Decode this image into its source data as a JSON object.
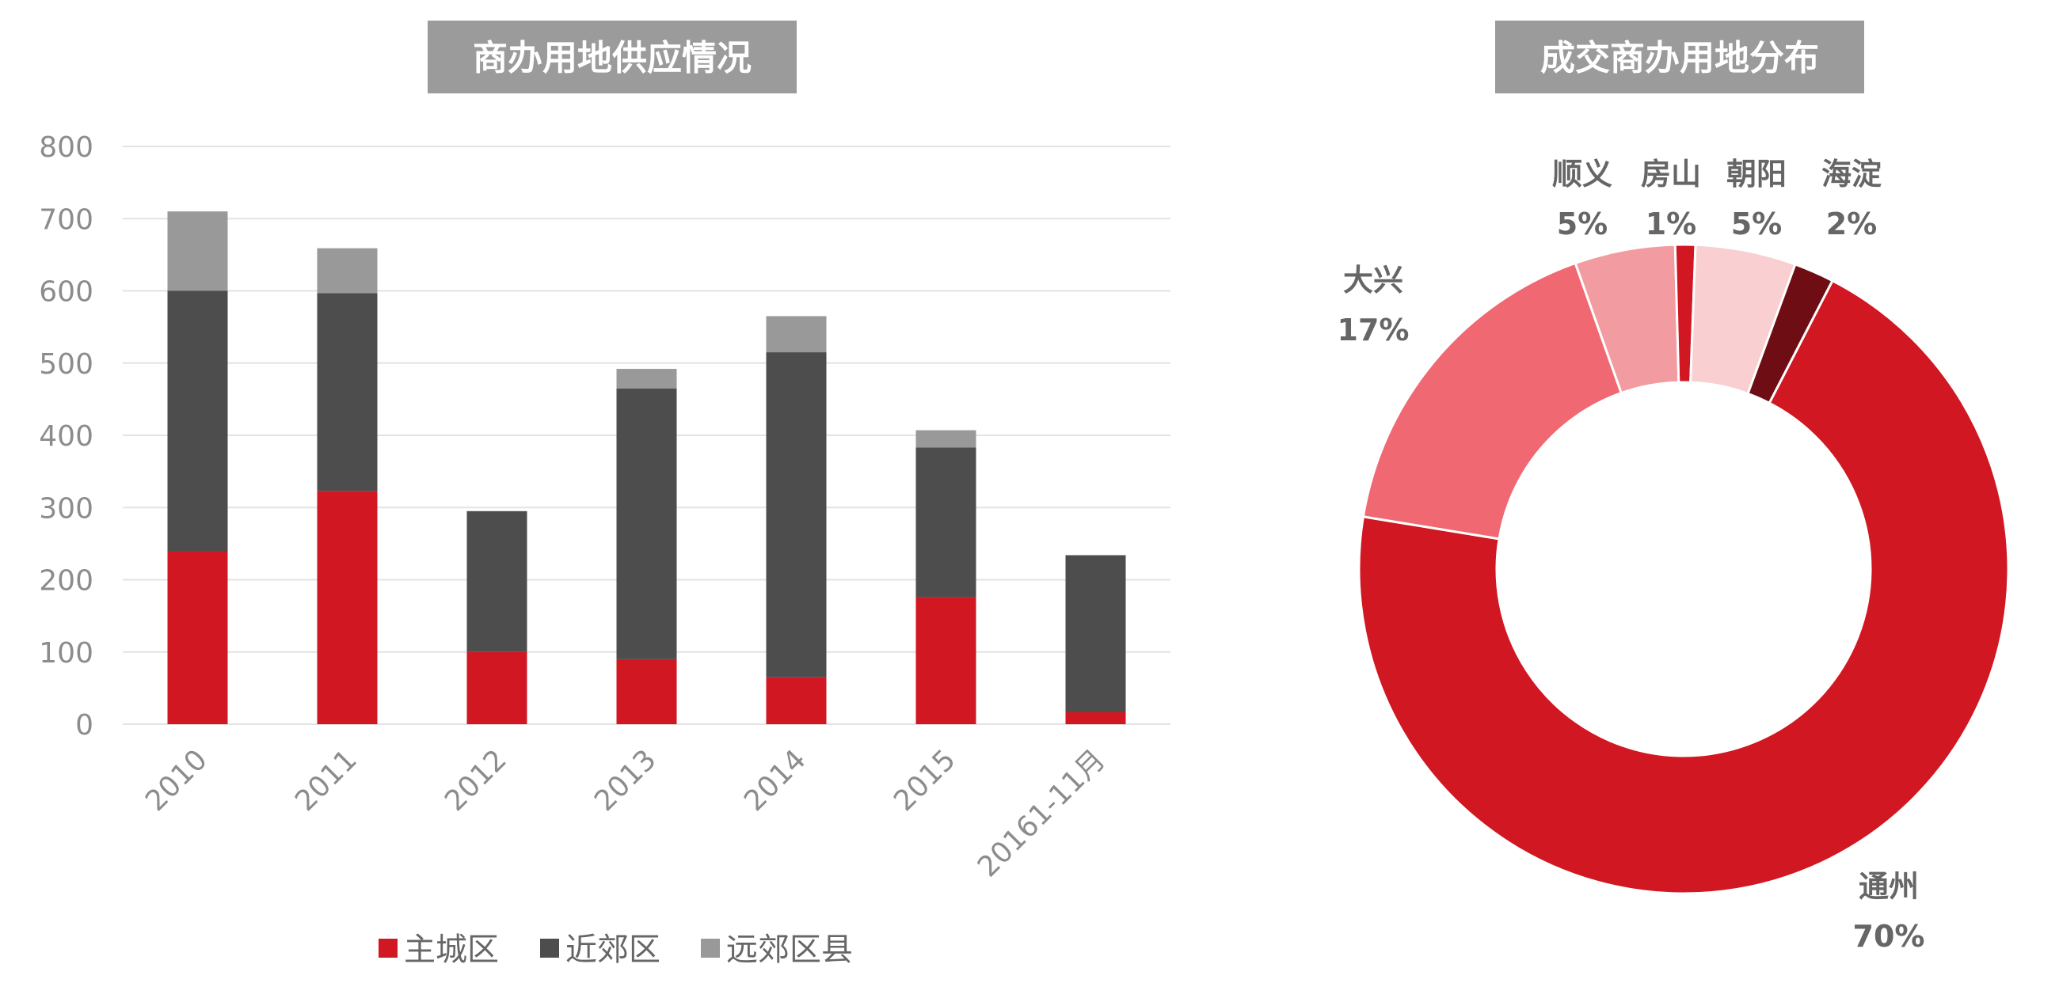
{
  "chart_data": [
    {
      "type": "bar",
      "stacked": true,
      "title": "商办用地供应情况",
      "categories": [
        "2010",
        "2011",
        "2012",
        "2013",
        "2014",
        "2015",
        "20161-11月"
      ],
      "series": [
        {
          "name": "主城区",
          "color": "#d01722",
          "values": [
            240,
            323,
            100,
            90,
            65,
            176,
            17
          ]
        },
        {
          "name": "近郊区",
          "color": "#4d4d4d",
          "values": [
            360,
            274,
            195,
            375,
            450,
            207,
            217
          ]
        },
        {
          "name": "远郊区县",
          "color": "#999999",
          "values": [
            110,
            62,
            0,
            27,
            50,
            24,
            0
          ]
        }
      ],
      "y_ticks": [
        "0",
        "100",
        "200",
        "300",
        "400",
        "500",
        "600",
        "700",
        "800"
      ],
      "ylim": [
        0,
        800
      ],
      "grid": true,
      "legend": "bottom"
    },
    {
      "type": "pie",
      "donut": true,
      "title": "成交商办用地分布",
      "slices": [
        {
          "name": "顺义",
          "pct_label": "5%",
          "value": 5,
          "color": "#f29ca1"
        },
        {
          "name": "房山",
          "pct_label": "1%",
          "value": 1,
          "color": "#d01722"
        },
        {
          "name": "朝阳",
          "pct_label": "5%",
          "value": 5,
          "color": "#f9cfd1"
        },
        {
          "name": "海淀",
          "pct_label": "2%",
          "value": 2,
          "color": "#6e0e14"
        },
        {
          "name": "通州",
          "pct_label": "70%",
          "value": 70,
          "color": "#d01722"
        },
        {
          "name": "大兴",
          "pct_label": "17%",
          "value": 17,
          "color": "#f06872"
        }
      ]
    }
  ]
}
